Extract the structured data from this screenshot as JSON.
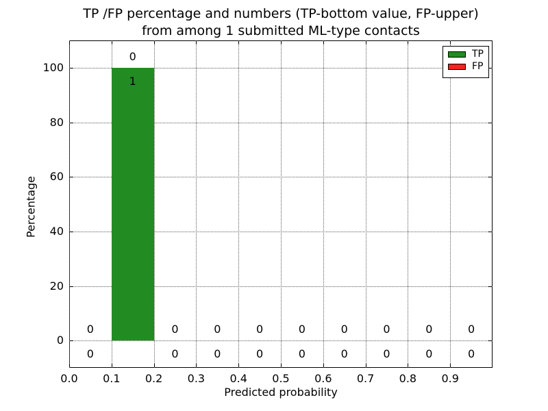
{
  "title": {
    "line1": "TP /FP percentage and numbers (TP-bottom value, FP-upper)",
    "line2": "from among 1 submitted ML-type contacts"
  },
  "axes": {
    "xlabel": "Predicted probability",
    "ylabel": "Percentage"
  },
  "legend": {
    "position": "upper right",
    "entries": [
      {
        "label": "TP",
        "color": "#228b22"
      },
      {
        "label": "FP",
        "color": "#f5231e"
      }
    ]
  },
  "chart_data": {
    "type": "bar",
    "stacked": true,
    "title": "TP /FP percentage and numbers (TP-bottom value, FP-upper) from among 1 submitted ML-type contacts",
    "xlabel": "Predicted probability",
    "ylabel": "Percentage",
    "bin_width": 0.1,
    "bin_centers": [
      0.05,
      0.15,
      0.25,
      0.35,
      0.45,
      0.55,
      0.65,
      0.75,
      0.85,
      0.95
    ],
    "series": [
      {
        "name": "TP",
        "color": "#228b22",
        "percentages": [
          0,
          100,
          0,
          0,
          0,
          0,
          0,
          0,
          0,
          0
        ],
        "counts": [
          0,
          1,
          0,
          0,
          0,
          0,
          0,
          0,
          0,
          0
        ],
        "count_label_position": "bottom"
      },
      {
        "name": "FP",
        "color": "#f5231e",
        "percentages": [
          0,
          0,
          0,
          0,
          0,
          0,
          0,
          0,
          0,
          0
        ],
        "counts": [
          0,
          0,
          0,
          0,
          0,
          0,
          0,
          0,
          0,
          0
        ],
        "count_label_position": "upper"
      }
    ],
    "xlim": [
      0.0,
      1.0
    ],
    "ylim": [
      -10,
      110
    ],
    "xticks": [
      0.0,
      0.1,
      0.2,
      0.3,
      0.4,
      0.5,
      0.6,
      0.7,
      0.8,
      0.9
    ],
    "xtick_labels": [
      "0.0",
      "0.1",
      "0.2",
      "0.3",
      "0.4",
      "0.5",
      "0.6",
      "0.7",
      "0.8",
      "0.9"
    ],
    "yticks": [
      0,
      20,
      40,
      60,
      80,
      100
    ],
    "ytick_labels": [
      "0",
      "20",
      "40",
      "60",
      "80",
      "100"
    ],
    "grid": true,
    "grid_style": "dotted",
    "legend_position": "upper right"
  }
}
